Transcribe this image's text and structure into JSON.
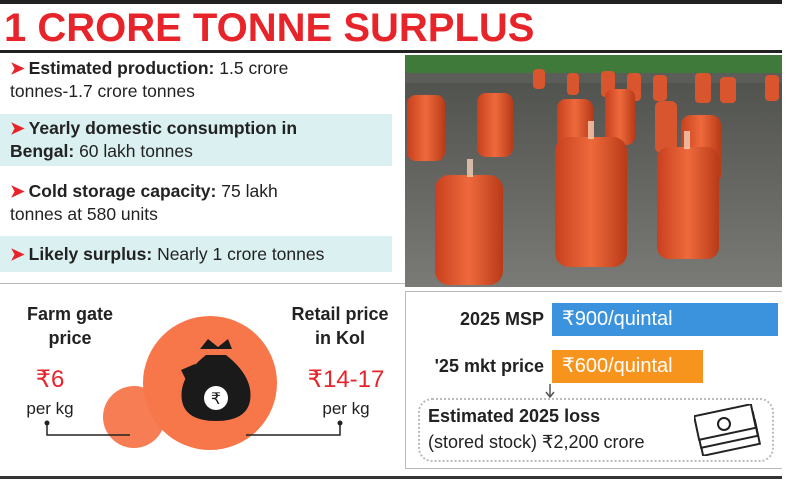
{
  "title": "1 CRORE TONNE SURPLUS",
  "facts": [
    {
      "label": "Estimated production:",
      "value": "1.5 crore",
      "value2": "tonnes-1.7 crore tonnes"
    },
    {
      "label": "Yearly domestic consumption in",
      "label2": "Bengal:",
      "value": "60 lakh tonnes"
    },
    {
      "label": "Cold storage capacity:",
      "value": "75 lakh",
      "value2": "tonnes at 580 units"
    },
    {
      "label": "Likely surplus:",
      "value": "Nearly 1 crore tonnes"
    }
  ],
  "farm_gate": {
    "line1": "Farm gate",
    "line2": "price",
    "value": "₹6",
    "unit": "per kg"
  },
  "retail": {
    "line1": "Retail price",
    "line2": "in Kol",
    "value": "₹14-17",
    "unit": "per kg"
  },
  "msp": {
    "label": "2025 MSP",
    "value": "₹900/quintal",
    "amount": 900,
    "color": "#3b93dd"
  },
  "market": {
    "label": "'25 mkt price",
    "value": "₹600/quintal",
    "amount": 600,
    "color": "#f7941d"
  },
  "loss": {
    "line1": "Estimated 2025 loss",
    "line2": "(stored stock) ₹2,200 crore"
  },
  "icons": [
    "money-bag-icon",
    "rupee-icon",
    "banknote-stack-icon",
    "arrow-right-icon"
  ],
  "colors": {
    "accent_red": "#e8242b",
    "circle_orange": "#f7774b",
    "shade": "#dbf0f0"
  }
}
